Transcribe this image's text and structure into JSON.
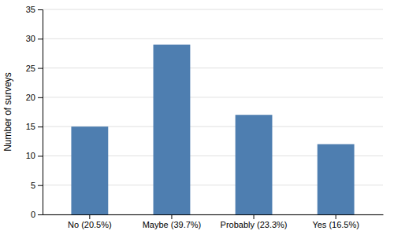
{
  "chart_data": {
    "type": "bar",
    "categories": [
      "No (20.5%)",
      "Maybe (39.7%)",
      "Probably (23.3%)",
      "Yes (16.5%)"
    ],
    "values": [
      15,
      29,
      17,
      12
    ],
    "color": "#4e7eb0",
    "ylabel": "Number of surveys",
    "ylim": [
      0,
      35
    ],
    "yticks": [
      0,
      5,
      10,
      15,
      20,
      25,
      30,
      35
    ],
    "grid": true
  }
}
